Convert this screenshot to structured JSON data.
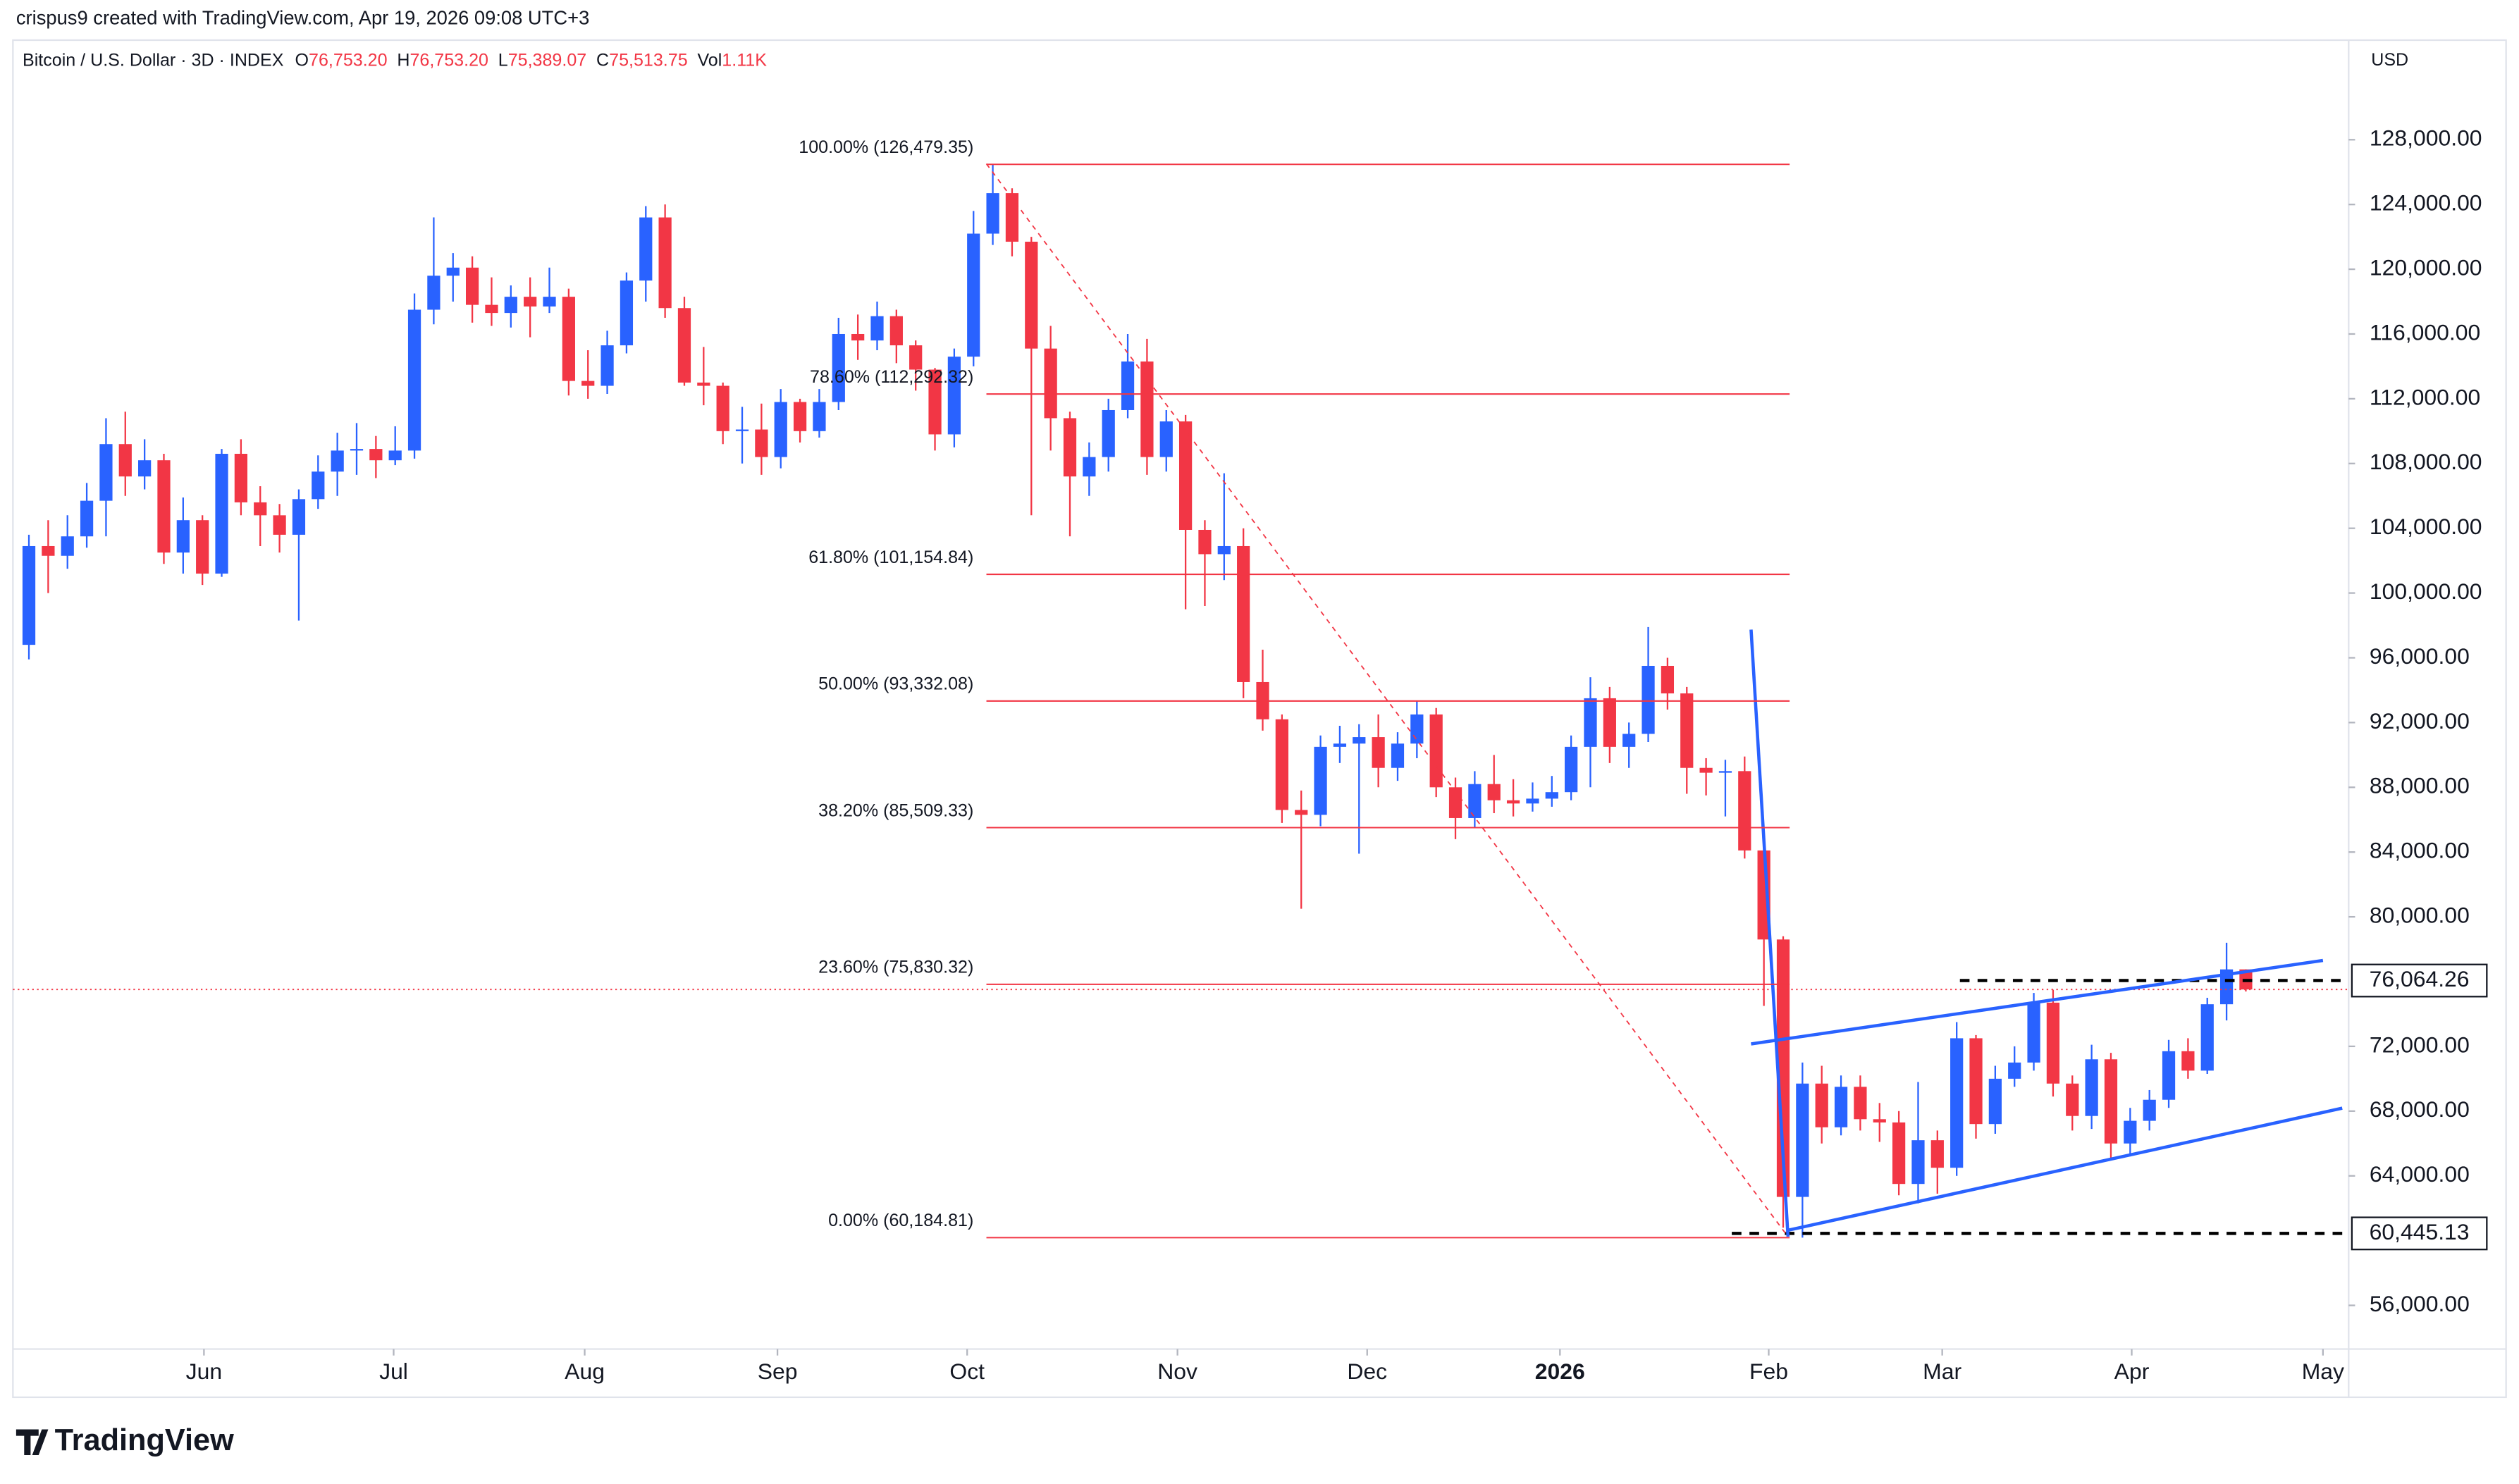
{
  "header": {
    "author": "crispus9 created with TradingView.com, Apr 19, 2026 09:08 UTC+3",
    "symbol": "Bitcoin / U.S. Dollar · 3D · INDEX",
    "ohlc": [
      {
        "key": "O",
        "value": "76,753.20"
      },
      {
        "key": "H",
        "value": "76,753.20"
      },
      {
        "key": "L",
        "value": "75,389.07"
      },
      {
        "key": "C",
        "value": "75,513.75"
      }
    ],
    "volume_key": "Vol",
    "volume": "1.11K",
    "currency": "USD",
    "logo": "TradingView"
  },
  "chart_data": {
    "type": "candlestick",
    "up_color": "#2962ff",
    "down_color": "#f23645",
    "grid": false,
    "categories": [
      null,
      null,
      null,
      null,
      null,
      null,
      null,
      null,
      null,
      null,
      null,
      null,
      null,
      null,
      null,
      null,
      null,
      null,
      null,
      null,
      null,
      null,
      null,
      null,
      null,
      null,
      null,
      null,
      null,
      null,
      null,
      null,
      null,
      null,
      null,
      null,
      null,
      null,
      null,
      null,
      null,
      null,
      null,
      null,
      null,
      null,
      null,
      null,
      null,
      null,
      null,
      null,
      null,
      null,
      null,
      null,
      null,
      null,
      null,
      null,
      null,
      null,
      null,
      null,
      null,
      null,
      null,
      null,
      null,
      null,
      null,
      null,
      null,
      null,
      null,
      null,
      null,
      null,
      null,
      null,
      null,
      null,
      null,
      null,
      null,
      null,
      null,
      null,
      null,
      null,
      null,
      null,
      null,
      null,
      null,
      null,
      null,
      null,
      null,
      null,
      null,
      null,
      null,
      null,
      null,
      null,
      null,
      null,
      null,
      null,
      null,
      null,
      null,
      null,
      null,
      null
    ],
    "open": [
      96800,
      102900,
      102300,
      103500,
      105700,
      109200,
      107200,
      108200,
      102500,
      104500,
      101200,
      108600,
      105600,
      104800,
      103600,
      105800,
      107500,
      108800,
      108900,
      108200,
      108800,
      117500,
      119600,
      120100,
      117800,
      117300,
      118300,
      117700,
      118300,
      113100,
      112800,
      115300,
      119300,
      123200,
      117600,
      113000,
      112800,
      110000,
      110100,
      108400,
      111800,
      110000,
      111800,
      116000,
      115600,
      117100,
      115300,
      113800,
      109800,
      114600,
      122200,
      124700,
      121700,
      115100,
      110800,
      107200,
      108400,
      111300,
      114300,
      108400,
      110600,
      103900,
      102400,
      102900,
      94500,
      92200,
      86600,
      86300,
      90500,
      90700,
      91100,
      89200,
      90700,
      92500,
      88000,
      86100,
      88200,
      87200,
      87000,
      87300,
      87700,
      90500,
      93500,
      90500,
      91300,
      95500,
      93800,
      89200,
      88900,
      89000,
      84100,
      78600,
      62700,
      69700,
      67000,
      69500,
      67500,
      67300,
      63500,
      66200,
      64500,
      72500,
      67200,
      70000,
      71000,
      74700,
      69700,
      67700,
      71200,
      66000,
      67400,
      68700,
      71700,
      70500,
      74600,
      76753.2
    ],
    "high": [
      103600,
      104500,
      104800,
      106800,
      110800,
      111200,
      109500,
      108600,
      105900,
      104800,
      108900,
      109500,
      106600,
      105500,
      106400,
      108500,
      109900,
      110500,
      109700,
      110300,
      118500,
      123200,
      121000,
      120800,
      119500,
      119000,
      119500,
      120100,
      118800,
      115000,
      116200,
      119800,
      123900,
      124000,
      118300,
      115200,
      113000,
      111500,
      111700,
      112600,
      112000,
      112600,
      117000,
      117200,
      118000,
      117500,
      115600,
      113900,
      115100,
      123600,
      126479.35,
      125000,
      122000,
      116500,
      111200,
      109300,
      112000,
      116000,
      115700,
      111300,
      111000,
      104500,
      107400,
      104000,
      96500,
      92500,
      87800,
      91200,
      91800,
      91900,
      92500,
      91400,
      93300,
      92900,
      88600,
      89000,
      90000,
      88500,
      88300,
      88700,
      91200,
      94800,
      94200,
      92000,
      97900,
      96000,
      94200,
      89800,
      89700,
      89900,
      84500,
      78800,
      71000,
      70800,
      70200,
      70200,
      68500,
      68000,
      69800,
      66800,
      73500,
      72700,
      70800,
      72000,
      75300,
      75500,
      70200,
      72100,
      71600,
      68200,
      69300,
      72400,
      72500,
      75000,
      78400,
      76753.2
    ],
    "low": [
      95900,
      100000,
      101500,
      102800,
      103500,
      106000,
      106400,
      101800,
      101200,
      100500,
      101000,
      104800,
      102900,
      102500,
      98300,
      105200,
      106000,
      107300,
      107100,
      107900,
      108300,
      116600,
      118000,
      116700,
      116500,
      116400,
      115800,
      117300,
      112200,
      112000,
      112300,
      114800,
      118000,
      117000,
      112800,
      111600,
      109200,
      108000,
      107300,
      107700,
      109300,
      109600,
      111300,
      114400,
      115000,
      114200,
      112500,
      108800,
      109000,
      114000,
      121500,
      120800,
      104800,
      108800,
      103500,
      106000,
      107500,
      110800,
      107300,
      107500,
      99000,
      99200,
      100800,
      93500,
      91500,
      85800,
      80500,
      85600,
      89500,
      83900,
      88000,
      88400,
      89800,
      87400,
      84800,
      85500,
      86400,
      86200,
      86500,
      86800,
      87200,
      88000,
      89500,
      89200,
      90800,
      92800,
      87600,
      87500,
      86200,
      83600,
      74500,
      60800,
      60184.81,
      66000,
      66500,
      66800,
      66100,
      62800,
      62300,
      62900,
      64000,
      66300,
      66600,
      69500,
      70500,
      68900,
      66800,
      66900,
      65000,
      65200,
      66800,
      68200,
      70000,
      70300,
      73600,
      75389.07
    ],
    "close": [
      102900,
      102300,
      103500,
      105700,
      109200,
      107200,
      108200,
      102500,
      104500,
      101200,
      108600,
      105600,
      104800,
      103600,
      105800,
      107500,
      108800,
      108900,
      108200,
      108800,
      117500,
      119600,
      120100,
      117800,
      117300,
      118300,
      117700,
      118300,
      113100,
      112800,
      115300,
      119300,
      123200,
      117600,
      113000,
      112800,
      110000,
      110100,
      108400,
      111800,
      110000,
      111800,
      116000,
      115600,
      117100,
      115300,
      113800,
      109800,
      114600,
      122200,
      124700,
      121700,
      115100,
      110800,
      107200,
      108400,
      111300,
      114300,
      108400,
      110600,
      103900,
      102400,
      102900,
      94500,
      92200,
      86600,
      86300,
      90500,
      90700,
      91100,
      89200,
      90700,
      92500,
      88000,
      86100,
      88200,
      87200,
      87000,
      87300,
      87700,
      90500,
      93500,
      90500,
      91300,
      95500,
      93800,
      89200,
      88900,
      89000,
      84100,
      78600,
      62700,
      69700,
      67000,
      69500,
      67500,
      67300,
      63500,
      66200,
      64500,
      72500,
      67200,
      70000,
      71000,
      74700,
      69700,
      67700,
      71200,
      66000,
      67400,
      68700,
      71700,
      70500,
      74600,
      76753.2,
      75513.75
    ],
    "xlim": [
      -0.83,
      120
    ],
    "xticks": [
      {
        "value": 9.08,
        "label": "Jun"
      },
      {
        "value": 18.92,
        "label": "Jul"
      },
      {
        "value": 28.83,
        "label": "Aug"
      },
      {
        "value": 38.83,
        "label": "Sep"
      },
      {
        "value": 48.67,
        "label": "Oct"
      },
      {
        "value": 59.58,
        "label": "Nov"
      },
      {
        "value": 69.42,
        "label": "Dec"
      },
      {
        "value": 79.42,
        "label": "2026"
      },
      {
        "value": 90.25,
        "label": "Feb"
      },
      {
        "value": 99.25,
        "label": "Mar"
      },
      {
        "value": 109.08,
        "label": "Apr"
      },
      {
        "value": 119.0,
        "label": "May"
      }
    ],
    "ylim": [
      53300,
      134150
    ],
    "yticks": [
      {
        "value": 56000,
        "label": "56,000.00"
      },
      {
        "value": 64000,
        "label": "64,000.00"
      },
      {
        "value": 68000,
        "label": "68,000.00"
      },
      {
        "value": 72000,
        "label": "72,000.00"
      },
      {
        "value": 80000,
        "label": "80,000.00"
      },
      {
        "value": 84000,
        "label": "84,000.00"
      },
      {
        "value": 88000,
        "label": "88,000.00"
      },
      {
        "value": 92000,
        "label": "92,000.00"
      },
      {
        "value": 96000,
        "label": "96,000.00"
      },
      {
        "value": 100000,
        "label": "100,000.00"
      },
      {
        "value": 104000,
        "label": "104,000.00"
      },
      {
        "value": 108000,
        "label": "108,000.00"
      },
      {
        "value": 112000,
        "label": "112,000.00"
      },
      {
        "value": 116000,
        "label": "116,000.00"
      },
      {
        "value": 120000,
        "label": "120,000.00"
      },
      {
        "value": 124000,
        "label": "124,000.00"
      },
      {
        "value": 128000,
        "label": "128,000.00"
      }
    ],
    "fib_levels": [
      {
        "value": 126479.35,
        "label": "100.00% (126,479.35)"
      },
      {
        "value": 112292.32,
        "label": "78.60% (112,292.32)"
      },
      {
        "value": 101154.84,
        "label": "61.80% (101,154.84)"
      },
      {
        "value": 93332.08,
        "label": "50.00% (93,332.08)"
      },
      {
        "value": 85509.33,
        "label": "38.20% (85,509.33)"
      },
      {
        "value": 75830.32,
        "label": "23.60% (75,830.32)"
      },
      {
        "value": 60184.81,
        "label": "0.00% (60,184.81)"
      }
    ],
    "fib_color": "#f23645",
    "price_lines": [
      {
        "value": 76064.26,
        "label": "76,064.26"
      },
      {
        "value": 60445.13,
        "label": "60,445.13"
      }
    ]
  }
}
